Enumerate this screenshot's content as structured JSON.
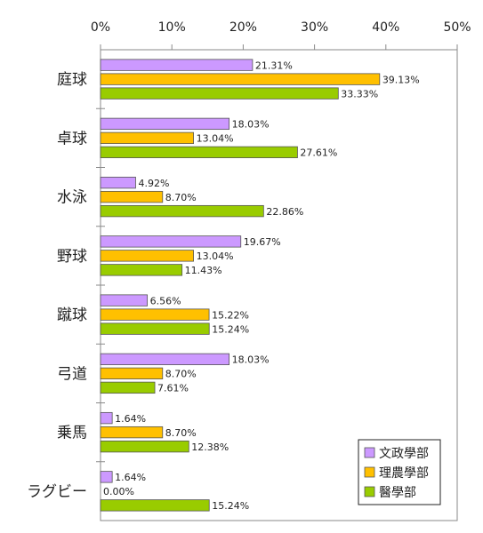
{
  "chart_data": {
    "type": "bar",
    "orientation": "horizontal",
    "categories": [
      "庭球",
      "卓球",
      "水泳",
      "野球",
      "蹴球",
      "弓道",
      "乗馬",
      "ラグビー"
    ],
    "series": [
      {
        "name": "文政學部",
        "color": "#cc99ff",
        "values": [
          21.31,
          18.03,
          4.92,
          19.67,
          6.56,
          18.03,
          1.64,
          1.64
        ]
      },
      {
        "name": "理農學部",
        "color": "#ffc000",
        "values": [
          39.13,
          13.04,
          8.7,
          13.04,
          15.22,
          8.7,
          8.7,
          0.0
        ]
      },
      {
        "name": "醫學部",
        "color": "#99cc00",
        "values": [
          33.33,
          27.61,
          22.86,
          11.43,
          15.24,
          7.61,
          12.38,
          15.24
        ]
      }
    ],
    "value_labels": [
      [
        "21.31%",
        "18.03%",
        "4.92%",
        "19.67%",
        "6.56%",
        "18.03%",
        "1.64%",
        "1.64%"
      ],
      [
        "39.13%",
        "13.04%",
        "8.70%",
        "13.04%",
        "15.22%",
        "8.70%",
        "8.70%",
        "0.00%"
      ],
      [
        "33.33%",
        "27.61%",
        "22.86%",
        "11.43%",
        "15.24%",
        "7.61%",
        "12.38%",
        "15.24%"
      ]
    ],
    "x_ticks": [
      "0%",
      "10%",
      "20%",
      "30%",
      "40%",
      "50%"
    ],
    "xlim": [
      0,
      50
    ],
    "x_axis_position": "top",
    "grid": false,
    "legend_position": "bottom-right",
    "title": "",
    "xlabel": "",
    "ylabel": ""
  }
}
